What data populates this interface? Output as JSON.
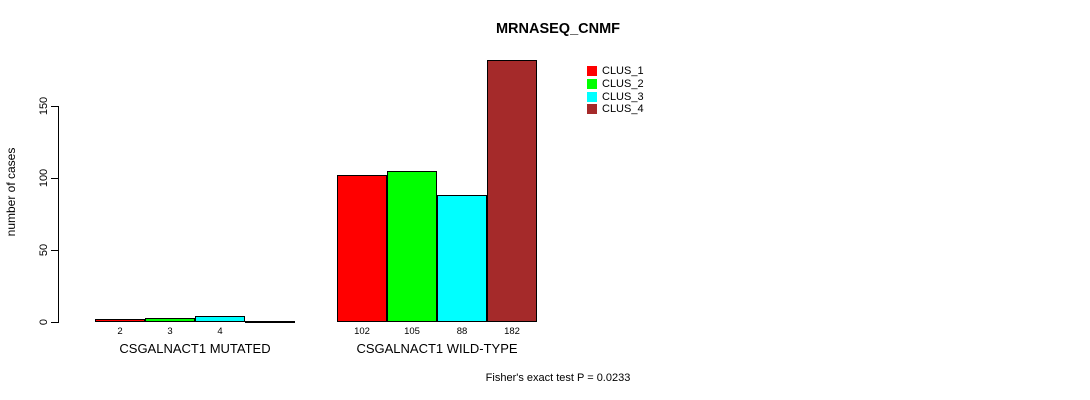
{
  "chart_data": {
    "type": "bar",
    "title": "MRNASEQ_CNMF",
    "ylabel": "number of cases",
    "xlabel": "",
    "categories": [
      "CSGALNACT1 MUTATED",
      "CSGALNACT1 WILD-TYPE"
    ],
    "series": [
      {
        "name": "CLUS_1",
        "color": "#FF0000",
        "values": [
          2,
          102
        ]
      },
      {
        "name": "CLUS_2",
        "color": "#00FF00",
        "values": [
          3,
          105
        ]
      },
      {
        "name": "CLUS_3",
        "color": "#00FFFF",
        "values": [
          4,
          88
        ]
      },
      {
        "name": "CLUS_4",
        "color": "#A52A2A",
        "values": [
          0,
          182
        ]
      }
    ],
    "bar_value_labels": [
      [
        "2",
        "3",
        "4",
        ""
      ],
      [
        "102",
        "105",
        "88",
        "182"
      ]
    ],
    "yticks": [
      0,
      50,
      100,
      150
    ],
    "ylim": [
      0,
      150
    ],
    "grid": false,
    "legend_position": "top-right",
    "annotation": "Fisher's exact test P = 0.0233",
    "colors": {
      "background": "#FFFFFF",
      "axis": "#000000",
      "bar_border": "#000000",
      "text": "#000000"
    }
  }
}
